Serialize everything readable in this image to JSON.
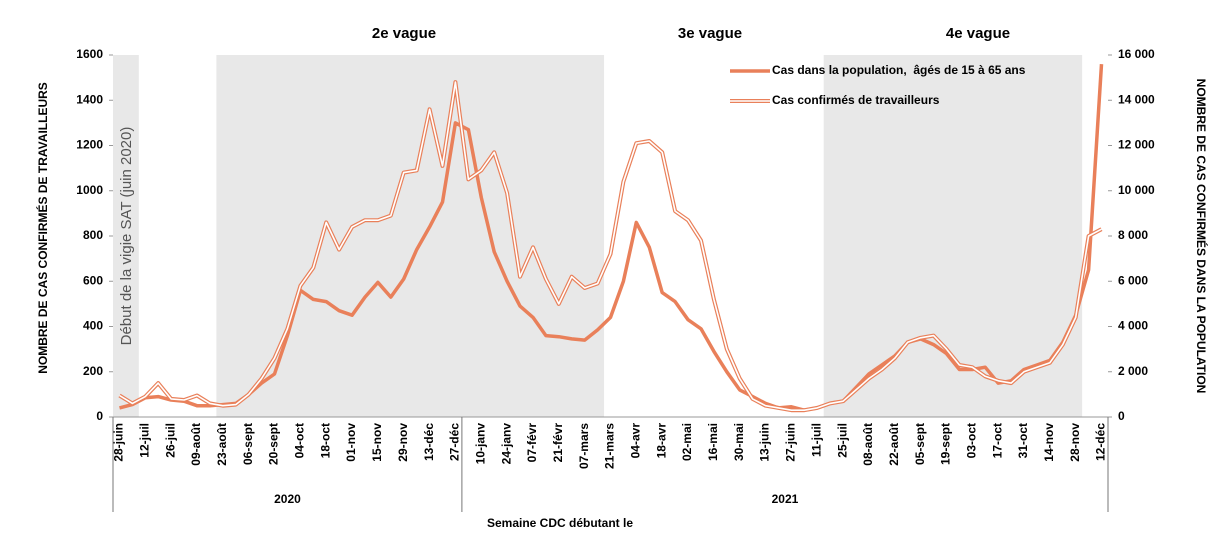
{
  "chart_data": {
    "type": "line",
    "y_label": "NOMBRE DE CAS CONFIRMÉS DE TRAVAILLEURS",
    "y2_label": "NOMBRE DE CAS CONFIRMÉS DANS LA POPULATION",
    "x_label": "Semaine CDC débutant le",
    "annotations": [
      "2e vague",
      "3e vague",
      "4e vague",
      "Début de la vigie SAT (juin 2020)"
    ],
    "year_labels": [
      "2020",
      "2021"
    ],
    "categories": [
      "28-juin",
      null,
      "12-juil",
      null,
      "26-juil",
      null,
      "09-août",
      null,
      "23-août",
      null,
      "06-sept",
      null,
      "20-sept",
      null,
      "04-oct",
      null,
      "18-oct",
      null,
      "01-nov",
      null,
      "15-nov",
      null,
      "29-nov",
      null,
      "13-déc",
      null,
      "27-déc",
      null,
      "10-janv",
      null,
      "24-janv",
      null,
      "07-févr",
      null,
      "21-févr",
      null,
      "07-mars",
      null,
      "21-mars",
      null,
      "04-avr",
      null,
      "18-avr",
      null,
      "02-mai",
      null,
      "16-mai",
      null,
      "30-mai",
      null,
      "13-juin",
      null,
      "27-juin",
      null,
      "11-juil",
      null,
      "25-juil",
      null,
      "08-août",
      null,
      "22-août",
      null,
      "05-sept",
      null,
      "19-sept",
      null,
      "03-oct",
      null,
      "17-oct",
      null,
      "31-oct",
      null,
      "14-nov",
      null,
      "28-nov",
      null,
      "12-déc"
    ],
    "series": [
      {
        "name": "Cas dans la population,  âgés de 15 à 65 ans",
        "color": "#e9805a",
        "axis": "y2",
        "style": "thick",
        "values": [
          400,
          550,
          850,
          900,
          750,
          700,
          500,
          500,
          550,
          600,
          1000,
          1500,
          1900,
          3600,
          5600,
          5200,
          5100,
          4700,
          4500,
          5300,
          5950,
          5300,
          6100,
          7400,
          8400,
          9500,
          13000,
          12700,
          9700,
          7300,
          6000,
          4900,
          4400,
          3600,
          3550,
          3450,
          3400,
          3850,
          4400,
          6000,
          8600,
          7500,
          5500,
          5100,
          4300,
          3900,
          2900,
          2000,
          1200,
          900,
          600,
          400,
          450,
          300,
          400,
          600,
          700,
          1300,
          1900,
          2300,
          2700,
          3300,
          3450,
          3200,
          2800,
          2100,
          2100,
          2200,
          1500,
          1600,
          2100,
          2300,
          2500,
          3300,
          4500,
          6500,
          15600
        ]
      },
      {
        "name": "Cas confirmés de travailleurs",
        "color": "#e9805a",
        "axis": "y",
        "style": "double",
        "values": [
          95,
          60,
          90,
          150,
          80,
          75,
          95,
          60,
          50,
          55,
          100,
          170,
          260,
          390,
          580,
          660,
          860,
          740,
          840,
          870,
          870,
          890,
          1080,
          1090,
          1360,
          1110,
          1480,
          1050,
          1090,
          1170,
          990,
          620,
          750,
          610,
          500,
          620,
          570,
          590,
          720,
          1040,
          1210,
          1220,
          1170,
          910,
          870,
          780,
          520,
          300,
          170,
          80,
          50,
          40,
          30,
          30,
          40,
          60,
          70,
          120,
          170,
          210,
          260,
          330,
          350,
          360,
          300,
          230,
          220,
          180,
          160,
          150,
          200,
          220,
          240,
          320,
          440,
          800,
          830
        ]
      }
    ],
    "ylim": [
      0,
      1600
    ],
    "yticks": [
      0,
      200,
      400,
      600,
      800,
      1000,
      1200,
      1400,
      1600
    ],
    "y2lim": [
      0,
      16000
    ],
    "y2ticks": [
      0,
      {
        "value": 2000,
        "label": "2 000"
      },
      {
        "value": 4000,
        "label": "4 000"
      },
      {
        "value": 6000,
        "label": "6 000"
      },
      {
        "value": 8000,
        "label": "8 000"
      },
      {
        "value": 10000,
        "label": "10 000"
      },
      {
        "value": 12000,
        "label": "12 000"
      },
      {
        "value": 14000,
        "label": "14 000"
      },
      {
        "value": 16000,
        "label": "16 000"
      }
    ],
    "legend": "top-right"
  }
}
